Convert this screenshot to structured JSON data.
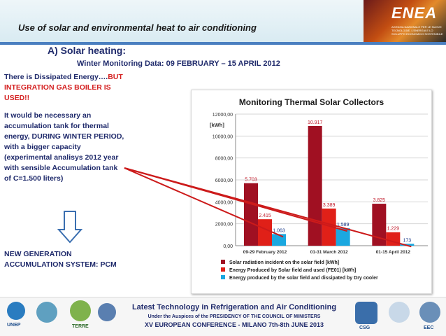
{
  "header": {
    "title": "Use of solar and environmental heat to air conditioning",
    "logo_text": "ENEA",
    "logo_subtext": "AGENZIA NAZIONALE PER LE NUOVE TECNOLOGIE, L'ENERGIA E LO SVILUPPO ECONOMICO SOSTENIBILE"
  },
  "section": {
    "title": "A) Solar heating:",
    "subtitle": "Winter Monitoring Data: 09 FEBRUARY – 15 APRIL 2012"
  },
  "left": {
    "p1_normal": "There is Dissipated Energy….",
    "p1_red": "BUT INTEGRATION GAS BOILER IS USED!!",
    "p2": "It would be necessary an accumulation tank for thermal energy, DURING WINTER PERIOD, with a bigger capacity (experimental analisys 2012 year with sensible Accumulation tank of C=1.500 liters)",
    "p3": "NEW GENERATION ACCUMULATION SYSTEM: PCM"
  },
  "chart_data": {
    "type": "bar",
    "title": "Monitoring Thermal Solar Collectors",
    "ylabel": "[kWh]",
    "ylim": [
      0,
      12000
    ],
    "yticks": [
      "0,00",
      "2000,00",
      "4000,00",
      "6000,00",
      "8000,00",
      "10000,00",
      "12000,00"
    ],
    "grid": true,
    "legend_position": "bottom",
    "categories": [
      "09-29 February 2012",
      "01-31 March 2012",
      "01-15 April 2012"
    ],
    "series": [
      {
        "name": "Solar radiation incident on the solar field [kWh]",
        "values": [
          5703,
          10917,
          3825
        ],
        "labels": [
          "5.703",
          "10.917",
          "3.825"
        ],
        "color": "#a01022"
      },
      {
        "name": "Energy Produced by Solar field and used (FE01) [kWh]",
        "values": [
          2415,
          3389,
          1229
        ],
        "labels": [
          "2.415",
          "3.389",
          "1.229"
        ],
        "color": "#e02018"
      },
      {
        "name": "Energy produced by the solar field and dissipated by Dry cooler",
        "values": [
          1063,
          1589,
          173
        ],
        "labels": [
          "1.063",
          "1.589",
          "173"
        ],
        "color": "#1ba8e0"
      }
    ]
  },
  "footer": {
    "line1": "Latest Technology in Refrigeration and Air Conditioning",
    "line2": "Under the Auspices of the PRESIDENCY OF THE COUNCIL OF MINISTERS",
    "line3": "XV EUROPEAN CONFERENCE - MILANO 7th-8th JUNE 2013",
    "logos": [
      "UNEP",
      "TERRE",
      "CSG",
      "EEC"
    ]
  }
}
